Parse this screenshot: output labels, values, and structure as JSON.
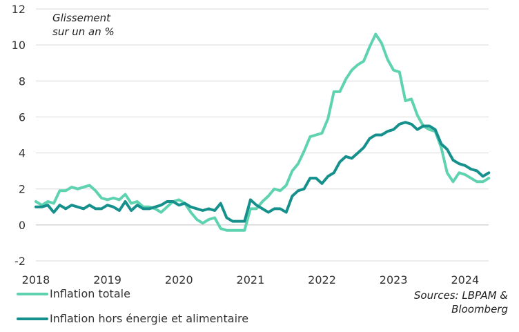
{
  "colors": {
    "total": "#5fd3b0",
    "core": "#16908c",
    "grid": "#d9d9d9",
    "zero": "#bfbfbf"
  },
  "chart_data": {
    "type": "line",
    "title": "Glissement sur un an %",
    "title_lines": [
      "Glissement",
      "sur un an %"
    ],
    "ylim": [
      -2,
      12
    ],
    "yticks": [
      -2,
      0,
      2,
      4,
      6,
      8,
      10,
      12
    ],
    "xlim": [
      2018,
      2024.33
    ],
    "xticks": [
      2018,
      2019,
      2020,
      2021,
      2022,
      2023,
      2024
    ],
    "grid": true,
    "x_start": 2018,
    "x_step_months": 1,
    "series": [
      {
        "name": "Inflation totale",
        "values": [
          1.3,
          1.1,
          1.3,
          1.2,
          1.9,
          1.9,
          2.1,
          2.0,
          2.1,
          2.2,
          1.9,
          1.5,
          1.4,
          1.5,
          1.4,
          1.7,
          1.2,
          1.3,
          1.0,
          1.0,
          0.9,
          0.7,
          1.0,
          1.3,
          1.4,
          1.2,
          0.7,
          0.3,
          0.1,
          0.3,
          0.4,
          -0.2,
          -0.3,
          -0.3,
          -0.3,
          -0.3,
          0.9,
          0.9,
          1.3,
          1.6,
          2.0,
          1.9,
          2.2,
          3.0,
          3.4,
          4.1,
          4.9,
          5.0,
          5.1,
          5.9,
          7.4,
          7.4,
          8.1,
          8.6,
          8.9,
          9.1,
          9.9,
          10.6,
          10.1,
          9.2,
          8.6,
          8.5,
          6.9,
          7.0,
          6.1,
          5.5,
          5.3,
          5.2,
          4.3,
          2.9,
          2.4,
          2.9,
          2.8,
          2.6,
          2.4,
          2.4,
          2.6
        ]
      },
      {
        "name": "Inflation hors énergie et alimentaire",
        "values": [
          1.0,
          1.0,
          1.1,
          0.7,
          1.1,
          0.9,
          1.1,
          1.0,
          0.9,
          1.1,
          0.9,
          0.9,
          1.1,
          1.0,
          0.8,
          1.3,
          0.8,
          1.1,
          0.9,
          0.9,
          1.0,
          1.1,
          1.3,
          1.3,
          1.1,
          1.2,
          1.0,
          0.9,
          0.8,
          0.9,
          0.8,
          1.2,
          0.4,
          0.2,
          0.2,
          0.2,
          1.4,
          1.1,
          0.9,
          0.7,
          0.9,
          0.9,
          0.7,
          1.6,
          1.9,
          2.0,
          2.6,
          2.6,
          2.3,
          2.7,
          2.9,
          3.5,
          3.8,
          3.7,
          4.0,
          4.3,
          4.8,
          5.0,
          5.0,
          5.2,
          5.3,
          5.6,
          5.7,
          5.6,
          5.3,
          5.5,
          5.5,
          5.3,
          4.5,
          4.2,
          3.6,
          3.4,
          3.3,
          3.1,
          3.0,
          2.7,
          2.9
        ]
      }
    ]
  },
  "legend": {
    "total_label": "Inflation totale",
    "core_label": "Inflation hors énergie et alimentaire"
  },
  "source": {
    "line1": "Sources: LBPAM &",
    "line2": "Bloomberg"
  }
}
